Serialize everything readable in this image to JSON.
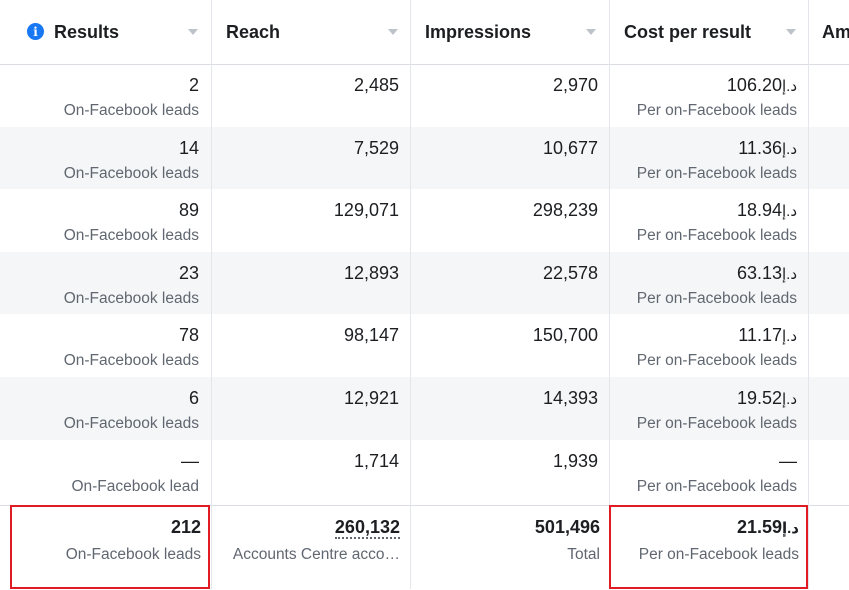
{
  "headers": {
    "results": "Results",
    "reach": "Reach",
    "impressions": "Impressions",
    "cost_per_result": "Cost per result",
    "amount": "Am"
  },
  "rows": [
    {
      "results": "2",
      "results_type": "On-Facebook leads",
      "reach": "2,485",
      "impressions": "2,970",
      "cost": "106.20",
      "cost_type": "Per on-Facebook leads"
    },
    {
      "results": "14",
      "results_type": "On-Facebook leads",
      "reach": "7,529",
      "impressions": "10,677",
      "cost": "11.36",
      "cost_type": "Per on-Facebook leads"
    },
    {
      "results": "89",
      "results_type": "On-Facebook leads",
      "reach": "129,071",
      "impressions": "298,239",
      "cost": "18.94",
      "cost_type": "Per on-Facebook leads"
    },
    {
      "results": "23",
      "results_type": "On-Facebook leads",
      "reach": "12,893",
      "impressions": "22,578",
      "cost": "63.13",
      "cost_type": "Per on-Facebook leads"
    },
    {
      "results": "78",
      "results_type": "On-Facebook leads",
      "reach": "98,147",
      "impressions": "150,700",
      "cost": "11.17",
      "cost_type": "Per on-Facebook leads"
    },
    {
      "results": "6",
      "results_type": "On-Facebook leads",
      "reach": "12,921",
      "impressions": "14,393",
      "cost": "19.52",
      "cost_type": "Per on-Facebook leads"
    },
    {
      "results": "—",
      "results_type": "On-Facebook lead",
      "reach": "1,714",
      "impressions": "1,939",
      "cost": "—",
      "cost_type": "Per on-Facebook leads"
    }
  ],
  "currency": "د.إ",
  "totals": {
    "results": "212",
    "results_type": "On-Facebook leads",
    "reach": "260,132",
    "reach_type": "Accounts Centre acco…",
    "impressions": "501,496",
    "impressions_type": "Total",
    "cost": "21.59",
    "cost_type": "Per on-Facebook leads"
  },
  "colors": {
    "highlight": "#e01b24",
    "info_icon": "#1877f2"
  }
}
